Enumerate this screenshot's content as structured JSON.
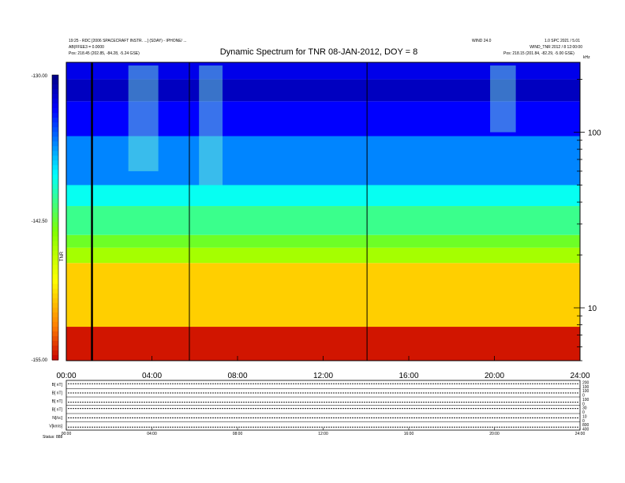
{
  "chart_data": {
    "type": "heatmap",
    "title": "Dynamic Spectrum for TNR 08-JAN-2012, DOY = 8",
    "header_left": [
      "19:25 - RDC [2006 SPACECRAFT INSTR. ...] (SDAY) - IPHONE/ ...",
      "AB(FFEE3 = 0.0000",
      "Pos:  218.45 (202.85, -84.28, -5.24 GSE)"
    ],
    "header_right": [
      "WIND 24.0",
      "1.0 SPC 2021 / 5.01",
      "WIND_TNR 2012 / 8 12:00:00",
      "Pos:  218.15 (201.84, -82.29, -5.00 GSE)"
    ],
    "colorbar_label": "TNR",
    "colorbar_ticks": [
      "-130.00",
      "-142.50",
      "-155.00"
    ],
    "colorbar_range": [
      -155.0,
      -130.0
    ],
    "x_ticks": [
      "00:00",
      "04:00",
      "08:00",
      "12:00",
      "16:00",
      "20:00",
      "24:00"
    ],
    "x_range_hours": [
      0,
      24
    ],
    "y_ticks": [
      "100",
      "10"
    ],
    "y_unit": "kHz",
    "y_scale": "log",
    "y_range_khz": [
      5,
      250
    ],
    "data_gap_times_hours": [
      1.2,
      5.75,
      14.05
    ],
    "background_bands": [
      {
        "f_min_khz": 5,
        "f_max_khz": 7.8,
        "level": -154.5
      },
      {
        "f_min_khz": 7.8,
        "f_max_khz": 18,
        "level": -149.5
      },
      {
        "f_min_khz": 18,
        "f_max_khz": 22,
        "level": -145
      },
      {
        "f_min_khz": 22,
        "f_max_khz": 26,
        "level": -143
      },
      {
        "f_min_khz": 26,
        "f_max_khz": 38,
        "level": -141
      },
      {
        "f_min_khz": 38,
        "f_max_khz": 50,
        "level": -139
      },
      {
        "f_min_khz": 50,
        "f_max_khz": 95,
        "level": -136
      },
      {
        "f_min_khz": 95,
        "f_max_khz": 150,
        "level": -133
      },
      {
        "f_min_khz": 150,
        "f_max_khz": 200,
        "level": -131.5
      },
      {
        "f_min_khz": 200,
        "f_max_khz": 250,
        "level": -132.5
      }
    ],
    "radio_bursts": [
      {
        "t_start": 2.9,
        "t_end": 4.3,
        "f_min_khz": 60,
        "f_max_khz": 240
      },
      {
        "t_start": 6.2,
        "t_end": 7.3,
        "f_min_khz": 50,
        "f_max_khz": 240
      },
      {
        "t_start": 19.8,
        "t_end": 21.0,
        "f_min_khz": 100,
        "f_max_khz": 240
      }
    ],
    "panels": {
      "labels": [
        "B[ nT]",
        "B[ nT]",
        "B[ nT]",
        "B[ nT]",
        "N[/cc]",
        "V[km/s]"
      ],
      "bottom_label": "Status: 888",
      "right_labels": [
        "200",
        "100",
        "100",
        "0",
        "100",
        "0",
        "30",
        "0",
        "10",
        "0",
        "800",
        "400"
      ],
      "x_ticks": [
        "00:00",
        "04:00",
        "08:00",
        "12:00",
        "16:00",
        "20:00",
        "24:00"
      ]
    }
  }
}
